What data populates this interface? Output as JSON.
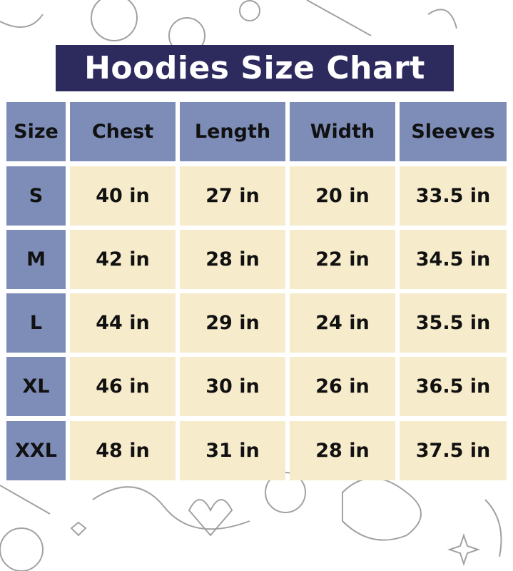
{
  "title": "Hoodies Size Chart",
  "colors": {
    "title_bg": "#2d2b5e",
    "header_bg": "#7d8db8",
    "cell_bg": "#f6ebcb"
  },
  "headers": [
    "Size",
    "Chest",
    "Length",
    "Width",
    "Sleeves"
  ],
  "rows": [
    [
      "S",
      "40 in",
      "27 in",
      "20 in",
      "33.5 in"
    ],
    [
      "M",
      "42 in",
      "28 in",
      "22 in",
      "34.5 in"
    ],
    [
      "L",
      "44 in",
      "29 in",
      "24 in",
      "35.5 in"
    ],
    [
      "XL",
      "46 in",
      "30 in",
      "26 in",
      "36.5 in"
    ],
    [
      "XXL",
      "48 in",
      "31 in",
      "28 in",
      "37.5 in"
    ]
  ]
}
